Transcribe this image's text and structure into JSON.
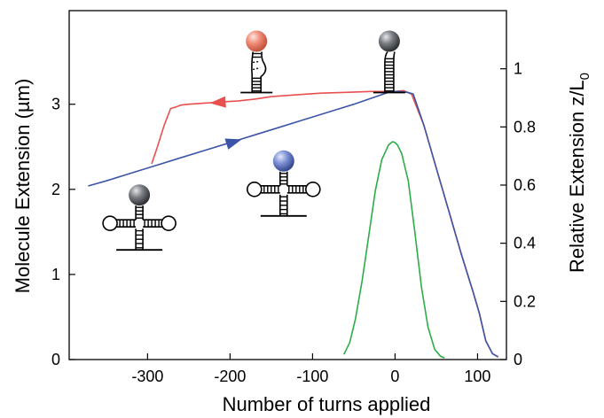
{
  "chart_data": {
    "type": "line",
    "xlabel": "Number of turns applied",
    "ylabel": "Molecule Extension (µm)",
    "ylabel_right": "Relative Extension z/L",
    "ylabel_right_sub": "0",
    "xlim": [
      -395,
      135
    ],
    "ylim": [
      0,
      4.1
    ],
    "ylim_right": [
      0,
      1.2
    ],
    "x_ticks": [
      -300,
      -200,
      -100,
      0,
      100
    ],
    "x_tick_labels": [
      "-300",
      "-200",
      "-100",
      "0",
      "100"
    ],
    "y_ticks": [
      0,
      1,
      2,
      3
    ],
    "y_tick_labels": [
      "0",
      "1",
      "2",
      "3"
    ],
    "y_right_ticks": [
      0,
      0.2,
      0.4,
      0.6,
      0.8,
      1
    ],
    "y_right_tick_labels": [
      "0",
      "0.2",
      "0.4",
      "0.6",
      "0.8",
      "1"
    ],
    "grid": false,
    "series": [
      {
        "color": "#e8504f",
        "x": [
          -295,
          -288,
          -280,
          -272,
          -265,
          -260,
          -250,
          -235,
          -220,
          -205,
          -190,
          -170,
          -150,
          -120,
          -90,
          -60,
          -30,
          -10,
          0,
          10,
          20,
          35,
          50,
          65,
          80,
          95,
          102,
          110,
          118,
          125
        ],
        "y": [
          2.3,
          2.5,
          2.75,
          2.95,
          2.97,
          2.99,
          3.0,
          3.01,
          3.02,
          3.03,
          3.04,
          3.06,
          3.09,
          3.11,
          3.13,
          3.14,
          3.15,
          3.15,
          3.15,
          3.16,
          3.12,
          2.75,
          2.25,
          1.75,
          1.25,
          0.78,
          0.55,
          0.22,
          0.07,
          0.03
        ]
      },
      {
        "color": "#3c55a8",
        "x": [
          -372,
          -350,
          -320,
          -290,
          -260,
          -230,
          -200,
          -170,
          -140,
          -110,
          -80,
          -50,
          -20,
          -5,
          5,
          15,
          22,
          35,
          50,
          65,
          80,
          95,
          102,
          110,
          118,
          125
        ],
        "y": [
          2.04,
          2.1,
          2.19,
          2.28,
          2.37,
          2.46,
          2.55,
          2.64,
          2.73,
          2.82,
          2.91,
          3.0,
          3.1,
          3.15,
          3.15,
          3.14,
          3.12,
          2.75,
          2.25,
          1.75,
          1.25,
          0.78,
          0.55,
          0.22,
          0.07,
          0.03
        ]
      },
      {
        "color": "#2eac48",
        "x": [
          -62,
          -55,
          -48,
          -40,
          -32,
          -24,
          -16,
          -8,
          -3,
          0,
          3,
          8,
          16,
          24,
          32,
          40,
          48,
          55,
          60
        ],
        "y": [
          0.06,
          0.2,
          0.48,
          0.92,
          1.45,
          1.98,
          2.35,
          2.52,
          2.56,
          2.55,
          2.52,
          2.42,
          2.1,
          1.5,
          0.85,
          0.38,
          0.12,
          0.04,
          0.02
        ]
      }
    ],
    "arrows": [
      {
        "series": 0,
        "color": "#e8504f",
        "x": -215,
        "y": 3.02,
        "direction": "left"
      },
      {
        "series": 1,
        "color": "#3c55a8",
        "x": -195,
        "y": 2.56,
        "direction": "right"
      }
    ],
    "structure_icons": [
      {
        "name": "cruciform-gray",
        "ball_color": "#55575a",
        "type": "cruciform",
        "x": -310,
        "y": 1.6
      },
      {
        "name": "cruciform-blue",
        "ball_color": "#6d82c8",
        "type": "cruciform",
        "x": -135,
        "y": 2.0
      },
      {
        "name": "partial-hairpin-salmon",
        "ball_color": "#e88472",
        "type": "partial",
        "x": -168,
        "y": 3.45
      },
      {
        "name": "hairpin-gray",
        "ball_color": "#55575a",
        "type": "hairpin",
        "x": -7,
        "y": 3.45
      }
    ]
  }
}
